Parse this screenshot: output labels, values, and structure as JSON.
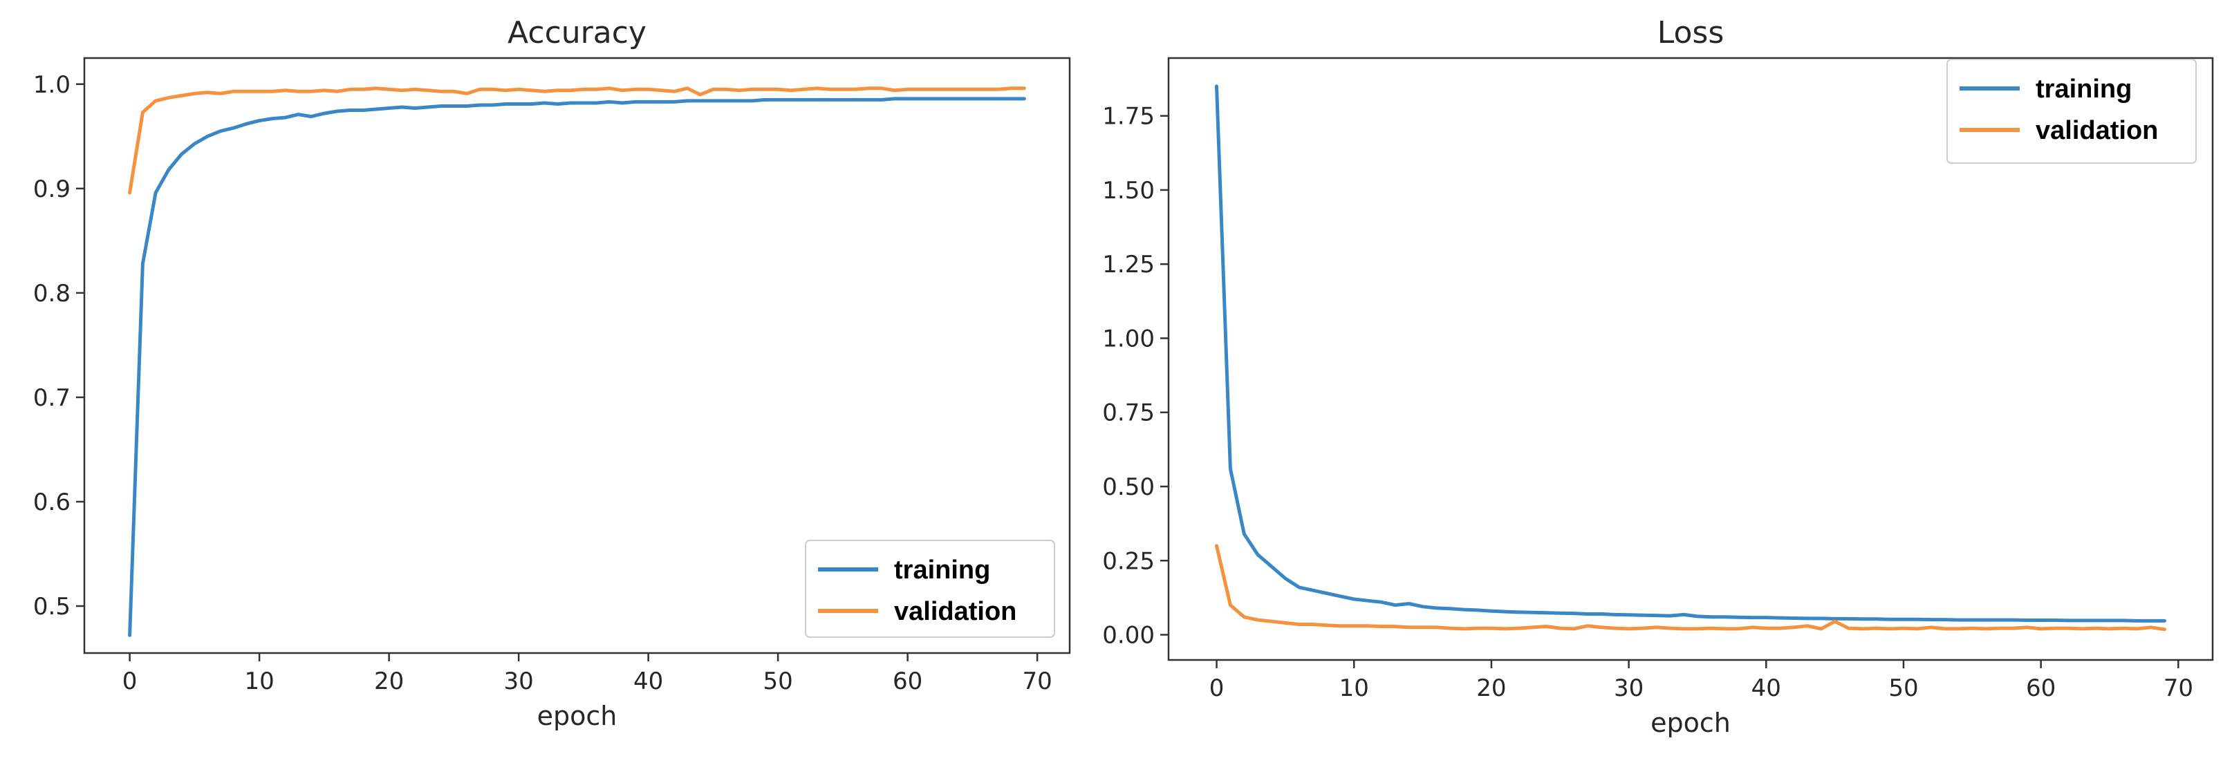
{
  "chart_data": [
    {
      "type": "line",
      "title": "Accuracy",
      "xlabel": "epoch",
      "ylabel": "",
      "xlim": [
        -3.5,
        72.5
      ],
      "ylim": [
        0.455,
        1.025
      ],
      "xticks": [
        0,
        10,
        20,
        30,
        40,
        50,
        60,
        70
      ],
      "xtick_labels": [
        "0",
        "10",
        "20",
        "30",
        "40",
        "50",
        "60",
        "70"
      ],
      "yticks": [
        0.5,
        0.6,
        0.7,
        0.8,
        0.9,
        1.0
      ],
      "ytick_labels": [
        "0.5",
        "0.6",
        "0.7",
        "0.8",
        "0.9",
        "1.0"
      ],
      "legend_position": "lower-right",
      "x": [
        0,
        1,
        2,
        3,
        4,
        5,
        6,
        7,
        8,
        9,
        10,
        11,
        12,
        13,
        14,
        15,
        16,
        17,
        18,
        19,
        20,
        21,
        22,
        23,
        24,
        25,
        26,
        27,
        28,
        29,
        30,
        31,
        32,
        33,
        34,
        35,
        36,
        37,
        38,
        39,
        40,
        41,
        42,
        43,
        44,
        45,
        46,
        47,
        48,
        49,
        50,
        51,
        52,
        53,
        54,
        55,
        56,
        57,
        58,
        59,
        60,
        61,
        62,
        63,
        64,
        65,
        66,
        67,
        68,
        69
      ],
      "series": [
        {
          "name": "training",
          "color": "#3a87c8",
          "values": [
            0.472,
            0.828,
            0.896,
            0.918,
            0.933,
            0.943,
            0.95,
            0.955,
            0.958,
            0.962,
            0.965,
            0.967,
            0.968,
            0.971,
            0.969,
            0.972,
            0.974,
            0.975,
            0.975,
            0.976,
            0.977,
            0.978,
            0.977,
            0.978,
            0.979,
            0.979,
            0.979,
            0.98,
            0.98,
            0.981,
            0.981,
            0.981,
            0.982,
            0.981,
            0.982,
            0.982,
            0.982,
            0.983,
            0.982,
            0.983,
            0.983,
            0.983,
            0.983,
            0.984,
            0.984,
            0.984,
            0.984,
            0.984,
            0.984,
            0.985,
            0.985,
            0.985,
            0.985,
            0.985,
            0.985,
            0.985,
            0.985,
            0.985,
            0.985,
            0.986,
            0.986,
            0.986,
            0.986,
            0.986,
            0.986,
            0.986,
            0.986,
            0.986,
            0.986,
            0.986
          ]
        },
        {
          "name": "validation",
          "color": "#f5923e",
          "values": [
            0.896,
            0.973,
            0.984,
            0.987,
            0.989,
            0.991,
            0.992,
            0.991,
            0.993,
            0.993,
            0.993,
            0.993,
            0.994,
            0.993,
            0.993,
            0.994,
            0.993,
            0.995,
            0.995,
            0.996,
            0.995,
            0.994,
            0.995,
            0.994,
            0.993,
            0.993,
            0.991,
            0.995,
            0.995,
            0.994,
            0.995,
            0.994,
            0.993,
            0.994,
            0.994,
            0.995,
            0.995,
            0.996,
            0.994,
            0.995,
            0.995,
            0.994,
            0.993,
            0.996,
            0.99,
            0.995,
            0.995,
            0.994,
            0.995,
            0.995,
            0.995,
            0.994,
            0.995,
            0.996,
            0.995,
            0.995,
            0.995,
            0.996,
            0.996,
            0.994,
            0.995,
            0.995,
            0.995,
            0.995,
            0.995,
            0.995,
            0.995,
            0.995,
            0.996,
            0.996
          ]
        }
      ]
    },
    {
      "type": "line",
      "title": "Loss",
      "xlabel": "epoch",
      "ylabel": "",
      "xlim": [
        -3.5,
        72.5
      ],
      "ylim": [
        -0.085,
        1.945
      ],
      "xticks": [
        0,
        10,
        20,
        30,
        40,
        50,
        60,
        70
      ],
      "xtick_labels": [
        "0",
        "10",
        "20",
        "30",
        "40",
        "50",
        "60",
        "70"
      ],
      "yticks": [
        0.0,
        0.25,
        0.5,
        0.75,
        1.0,
        1.25,
        1.5,
        1.75
      ],
      "ytick_labels": [
        "0.00",
        "0.25",
        "0.50",
        "0.75",
        "1.00",
        "1.25",
        "1.50",
        "1.75"
      ],
      "legend_position": "upper-right",
      "x": [
        0,
        1,
        2,
        3,
        4,
        5,
        6,
        7,
        8,
        9,
        10,
        11,
        12,
        13,
        14,
        15,
        16,
        17,
        18,
        19,
        20,
        21,
        22,
        23,
        24,
        25,
        26,
        27,
        28,
        29,
        30,
        31,
        32,
        33,
        34,
        35,
        36,
        37,
        38,
        39,
        40,
        41,
        42,
        43,
        44,
        45,
        46,
        47,
        48,
        49,
        50,
        51,
        52,
        53,
        54,
        55,
        56,
        57,
        58,
        59,
        60,
        61,
        62,
        63,
        64,
        65,
        66,
        67,
        68,
        69
      ],
      "series": [
        {
          "name": "training",
          "color": "#3a87c8",
          "values": [
            1.85,
            0.56,
            0.34,
            0.27,
            0.23,
            0.19,
            0.16,
            0.15,
            0.14,
            0.13,
            0.12,
            0.115,
            0.11,
            0.1,
            0.105,
            0.095,
            0.09,
            0.088,
            0.085,
            0.083,
            0.08,
            0.078,
            0.076,
            0.075,
            0.074,
            0.073,
            0.072,
            0.07,
            0.07,
            0.068,
            0.067,
            0.066,
            0.065,
            0.064,
            0.068,
            0.062,
            0.06,
            0.06,
            0.059,
            0.058,
            0.058,
            0.057,
            0.056,
            0.055,
            0.055,
            0.054,
            0.054,
            0.053,
            0.053,
            0.052,
            0.052,
            0.052,
            0.051,
            0.051,
            0.05,
            0.05,
            0.05,
            0.05,
            0.05,
            0.049,
            0.049,
            0.049,
            0.048,
            0.048,
            0.048,
            0.048,
            0.048,
            0.047,
            0.047,
            0.047
          ]
        },
        {
          "name": "validation",
          "color": "#f5923e",
          "values": [
            0.3,
            0.1,
            0.06,
            0.05,
            0.045,
            0.04,
            0.035,
            0.035,
            0.032,
            0.03,
            0.03,
            0.03,
            0.028,
            0.028,
            0.025,
            0.025,
            0.025,
            0.022,
            0.02,
            0.022,
            0.022,
            0.02,
            0.022,
            0.025,
            0.028,
            0.022,
            0.02,
            0.03,
            0.025,
            0.022,
            0.02,
            0.022,
            0.025,
            0.022,
            0.02,
            0.02,
            0.022,
            0.02,
            0.02,
            0.025,
            0.022,
            0.022,
            0.025,
            0.03,
            0.02,
            0.045,
            0.022,
            0.02,
            0.022,
            0.02,
            0.022,
            0.02,
            0.025,
            0.02,
            0.02,
            0.022,
            0.02,
            0.022,
            0.022,
            0.025,
            0.02,
            0.022,
            0.022,
            0.02,
            0.022,
            0.02,
            0.022,
            0.02,
            0.025,
            0.018
          ]
        }
      ]
    }
  ]
}
